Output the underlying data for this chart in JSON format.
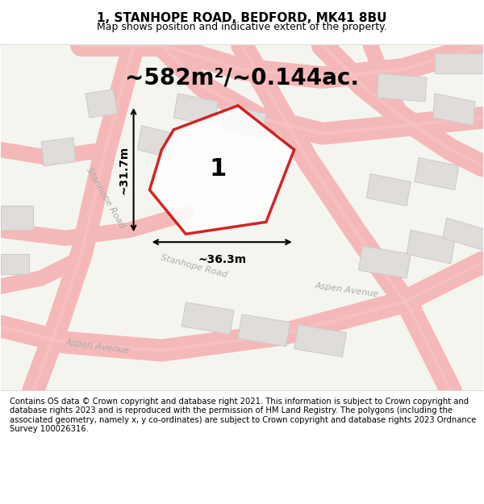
{
  "title": "1, STANHOPE ROAD, BEDFORD, MK41 8BU",
  "subtitle": "Map shows position and indicative extent of the property.",
  "area_label": "~582m²/~0.144ac.",
  "plot_number": "1",
  "width_label": "~36.3m",
  "height_label": "~31.7m",
  "footer": "Contains OS data © Crown copyright and database right 2021. This information is subject to Crown copyright and database rights 2023 and is reproduced with the permission of HM Land Registry. The polygons (including the associated geometry, namely x, y co-ordinates) are subject to Crown copyright and database rights 2023 Ordnance Survey 100026316.",
  "bg_color": "#f5f5f0",
  "map_bg": "#f0eeeb",
  "road_color": "#f5b8b8",
  "road_line_color": "#e8a0a0",
  "building_color": "#e0dcda",
  "building_edge": "#cccccc",
  "plot_color": "#cc0000",
  "plot_fill": "#ffffff",
  "road_label_color": "#b0b0b0",
  "dim_color": "#000000",
  "title_fontsize": 11,
  "subtitle_fontsize": 9,
  "area_fontsize": 20,
  "plot_num_fontsize": 22,
  "footer_fontsize": 7.2
}
